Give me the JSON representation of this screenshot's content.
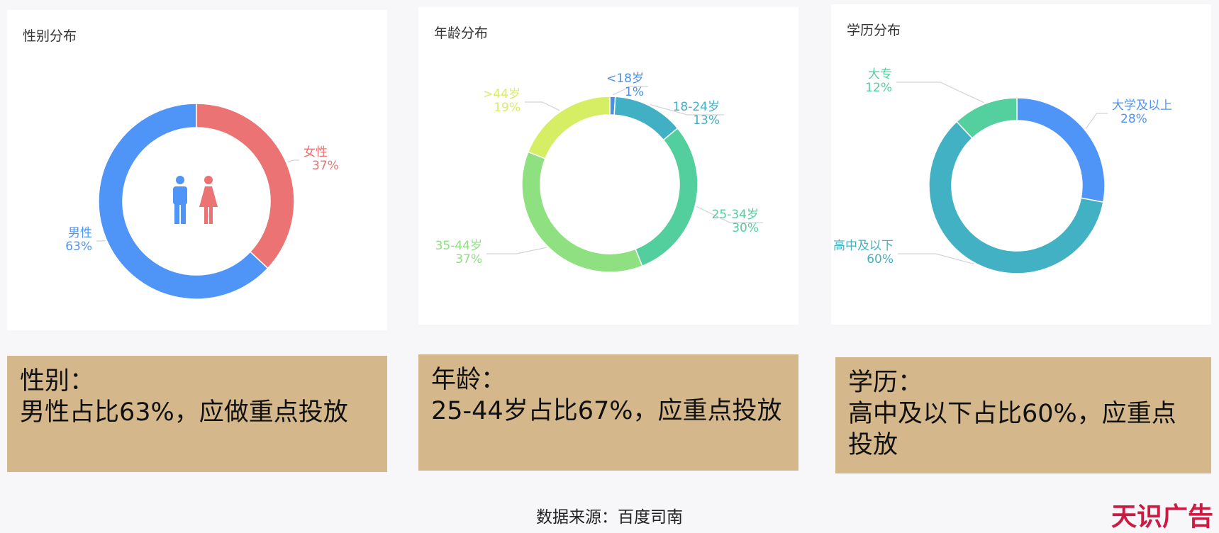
{
  "colors": {
    "male": "#4f94f7",
    "female": "#ec7373",
    "summary_bg": "#d4b88c",
    "brand": "#cc1b43"
  },
  "chart_data": [
    {
      "type": "pie",
      "title": "性别分布",
      "donut": true,
      "slices": [
        {
          "label": "女性",
          "pct_text": "37%",
          "value": 37,
          "color": "#ec7373"
        },
        {
          "label": "男性",
          "pct_text": "63%",
          "value": 63,
          "color": "#4f94f7"
        }
      ],
      "center_icon": "man-woman-icon"
    },
    {
      "type": "pie",
      "title": "年龄分布",
      "donut": true,
      "slices": [
        {
          "label": "<18岁",
          "pct_text": "1%",
          "value": 1,
          "color": "#4a8fe6"
        },
        {
          "label": "18-24岁",
          "pct_text": "13%",
          "value": 13,
          "color": "#42b0c4"
        },
        {
          "label": "25-34岁",
          "pct_text": "30%",
          "value": 30,
          "color": "#52cf9c"
        },
        {
          "label": "35-44岁",
          "pct_text": "37%",
          "value": 37,
          "color": "#8ee081"
        },
        {
          "label": ">44岁",
          "pct_text": "19%",
          "value": 19,
          "color": "#d6ee63"
        }
      ]
    },
    {
      "type": "pie",
      "title": "学历分布",
      "donut": true,
      "slices": [
        {
          "label": "大学及以上",
          "pct_text": "28%",
          "value": 28,
          "color": "#4f94f7"
        },
        {
          "label": "高中及以下",
          "pct_text": "60%",
          "value": 60,
          "color": "#43b1c4"
        },
        {
          "label": "大专",
          "pct_text": "12%",
          "value": 12,
          "color": "#54cf9e"
        }
      ]
    }
  ],
  "summaries": [
    {
      "head": "性别：",
      "body": "男性占比63%，应做重点投放"
    },
    {
      "head": "年龄：",
      "body": "25-44岁占比67%，应重点投放"
    },
    {
      "head": "学历：",
      "body": "高中及以下占比60%，应重点投放"
    }
  ],
  "footer": {
    "source": "数据来源：百度司南",
    "brand": "天识广告"
  }
}
